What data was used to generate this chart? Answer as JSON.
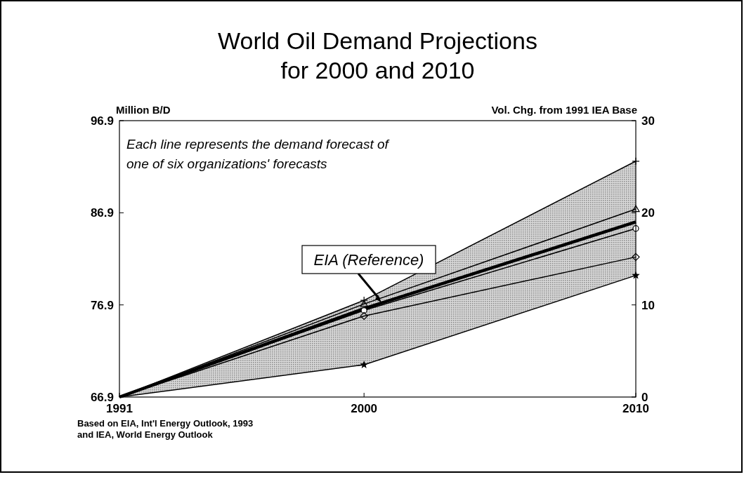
{
  "chart_data": {
    "type": "line",
    "title": "World Oil Demand Projections\nfor 2000 and 2010",
    "ylabel": "Million B/D",
    "y2label": "Vol. Chg. from 1991 IEA Base",
    "x": [
      1991,
      2000,
      2010
    ],
    "xlim": [
      1991,
      2010
    ],
    "xticks": [
      1991,
      2000,
      2010
    ],
    "ylim": [
      66.9,
      96.9
    ],
    "yticks": [
      66.9,
      76.9,
      86.9,
      96.9
    ],
    "y2lim": [
      0,
      30
    ],
    "y2ticks": [
      0,
      10,
      20,
      30
    ],
    "series": [
      {
        "color": "#000000",
        "marker": "cross",
        "values": [
          66.9,
          77.4,
          92.5
        ]
      },
      {
        "color": "#000000",
        "marker": "triangle",
        "values": [
          66.9,
          77.0,
          87.3
        ]
      },
      {
        "name": "EIA (Reference)",
        "color": "#000000",
        "marker": "none",
        "values": [
          66.9,
          76.5,
          85.9
        ],
        "lower": [
          66.9,
          70.4,
          80.1
        ],
        "upper": [
          66.9,
          77.4,
          92.5
        ]
      },
      {
        "color": "#000000",
        "marker": "circle",
        "values": [
          66.9,
          76.3,
          85.2
        ]
      },
      {
        "color": "#000000",
        "marker": "diamond",
        "values": [
          66.9,
          75.7,
          82.1
        ]
      },
      {
        "color": "#000000",
        "marker": "star",
        "values": [
          66.9,
          70.4,
          80.1
        ]
      }
    ],
    "annotations": [
      "Each line represents the demand forecast of\none of six organizations' forecasts",
      "Based on EIA, Int'l Energy Outlook, 1993\nand IEA, World Energy Outlook"
    ],
    "grid": false,
    "line_style": "solid"
  }
}
